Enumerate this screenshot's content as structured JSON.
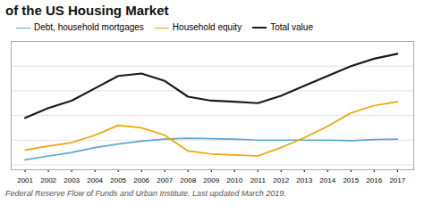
{
  "chart_data": {
    "type": "line",
    "title": "of the US Housing Market",
    "footnote": "Federal Reserve Flow of Funds and Urban Institute. Last updated March 2019.",
    "x": [
      2001,
      2002,
      2003,
      2004,
      2005,
      2006,
      2007,
      2008,
      2009,
      2010,
      2011,
      2012,
      2013,
      2014,
      2015,
      2016,
      2017
    ],
    "series": [
      {
        "name": "Debt, household mortgages",
        "color": "#5ba8d4",
        "values": [
          6.0,
          6.8,
          7.5,
          8.5,
          9.2,
          9.8,
          10.2,
          10.4,
          10.3,
          10.2,
          10.0,
          10.0,
          10.0,
          10.0,
          9.9,
          10.1,
          10.2
        ]
      },
      {
        "name": "Household equity",
        "color": "#f0a500",
        "values": [
          8.0,
          8.8,
          9.5,
          11.0,
          13.0,
          12.5,
          11.0,
          7.8,
          7.2,
          7.0,
          6.8,
          8.5,
          10.5,
          12.8,
          15.5,
          17.0,
          17.8
        ]
      },
      {
        "name": "Total value",
        "color": "#1a1a1a",
        "values": [
          14.5,
          16.5,
          18.0,
          20.5,
          23.0,
          23.5,
          22.0,
          18.8,
          18.0,
          17.8,
          17.5,
          19.0,
          21.0,
          23.0,
          25.0,
          26.5,
          27.5
        ]
      }
    ],
    "xlim": [
      2000.4,
      2017.7
    ],
    "xticks": [
      2001,
      2002,
      2003,
      2004,
      2005,
      2006,
      2007,
      2008,
      2009,
      2010,
      2011,
      2012,
      2013,
      2014,
      2015,
      2016,
      2017
    ],
    "ylim": [
      4,
      30
    ],
    "yticks": [
      5,
      10,
      15,
      20,
      25,
      30
    ],
    "grid": true,
    "tick_labels": "x",
    "legend": "upper left"
  }
}
